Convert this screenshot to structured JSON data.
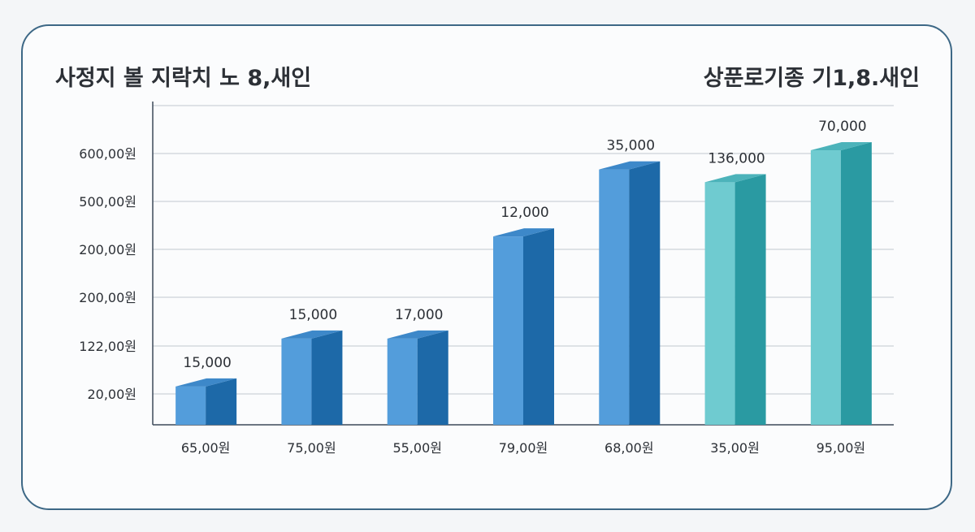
{
  "chart_data": {
    "type": "bar",
    "title": "사정지 볼 지락치 노 8,새인",
    "subtitle": "상푼로기종 기1,8.새인",
    "xlabel": "",
    "ylabel": "",
    "categories": [
      "65,00원",
      "75,00원",
      "55,00원",
      "79,00원",
      "68,00원",
      "35,00원",
      "95,00원"
    ],
    "data_labels": [
      "15,000",
      "15,000",
      "17,000",
      "12,000",
      "35,000",
      "136,000",
      "70,000"
    ],
    "bar_height_fraction": [
      0.12,
      0.27,
      0.27,
      0.59,
      0.8,
      0.76,
      0.86
    ],
    "y_tick_labels": [
      "20,00원",
      "122,00원",
      "200,00원",
      "200,00원",
      "500,00원",
      "600,00원"
    ],
    "grid": true,
    "legend": "none",
    "style": "3d-bars",
    "colors": {
      "blue_front": "#539ddb",
      "blue_side": "#1d69a8",
      "blue_top": "#3d88c9",
      "teal_front": "#6fcbd0",
      "teal_side": "#2a9aa2",
      "teal_top": "#4cb3ba",
      "grid": "#d5d9de",
      "axis": "#3d4a5a",
      "border": "#3d6886"
    },
    "bar_color_groups": [
      "blue",
      "blue",
      "blue",
      "blue",
      "blue",
      "teal",
      "teal"
    ]
  }
}
